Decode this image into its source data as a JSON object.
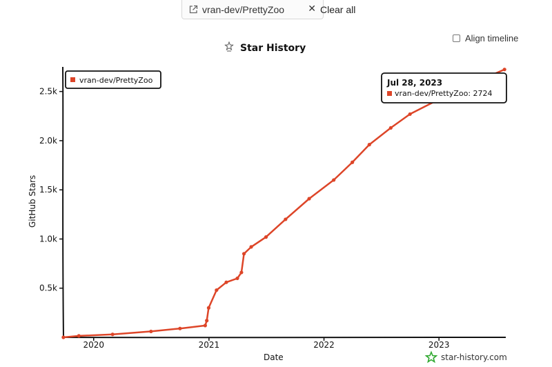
{
  "header": {
    "repo_chip_label": "vran-dev/PrettyZoo",
    "close_symbol": "✕",
    "clear_all_label": "Clear all",
    "align_timeline_label": "Align timeline"
  },
  "chart_data": {
    "type": "line",
    "title": "Star History",
    "xlabel": "Date",
    "ylabel": "GitHub Stars",
    "ylim": [
      0,
      2750
    ],
    "y_ticks": [
      {
        "value": 500,
        "label": "0.5k"
      },
      {
        "value": 1000,
        "label": "1.0k"
      },
      {
        "value": 1500,
        "label": "1.5k"
      },
      {
        "value": 2000,
        "label": "2.0k"
      },
      {
        "value": 2500,
        "label": "2.5k"
      }
    ],
    "x_ticks": [
      {
        "value": "2020-01-01",
        "label": "2020"
      },
      {
        "value": "2021-01-01",
        "label": "2021"
      },
      {
        "value": "2022-01-01",
        "label": "2022"
      },
      {
        "value": "2023-01-01",
        "label": "2023"
      }
    ],
    "xlim": [
      "2019-09-25",
      "2023-08-01"
    ],
    "legend_position": "top-left",
    "grid": false,
    "series": [
      {
        "name": "vran-dev/PrettyZoo",
        "color": "#dd4528",
        "points": [
          {
            "x": "2019-09-27",
            "y": 0
          },
          {
            "x": "2019-11-15",
            "y": 15
          },
          {
            "x": "2020-03-01",
            "y": 30
          },
          {
            "x": "2020-07-01",
            "y": 60
          },
          {
            "x": "2020-10-01",
            "y": 90
          },
          {
            "x": "2020-12-20",
            "y": 120
          },
          {
            "x": "2020-12-25",
            "y": 170
          },
          {
            "x": "2020-12-31",
            "y": 300
          },
          {
            "x": "2021-01-25",
            "y": 480
          },
          {
            "x": "2021-02-25",
            "y": 560
          },
          {
            "x": "2021-04-01",
            "y": 600
          },
          {
            "x": "2021-04-14",
            "y": 660
          },
          {
            "x": "2021-04-22",
            "y": 850
          },
          {
            "x": "2021-05-15",
            "y": 920
          },
          {
            "x": "2021-07-01",
            "y": 1020
          },
          {
            "x": "2021-09-01",
            "y": 1200
          },
          {
            "x": "2021-11-15",
            "y": 1410
          },
          {
            "x": "2022-02-01",
            "y": 1600
          },
          {
            "x": "2022-04-01",
            "y": 1780
          },
          {
            "x": "2022-05-25",
            "y": 1960
          },
          {
            "x": "2022-08-01",
            "y": 2130
          },
          {
            "x": "2022-10-01",
            "y": 2270
          },
          {
            "x": "2023-01-01",
            "y": 2420
          },
          {
            "x": "2023-04-01",
            "y": 2560
          },
          {
            "x": "2023-07-28",
            "y": 2724
          }
        ]
      }
    ],
    "tooltip": {
      "date": "Jul 28, 2023",
      "series_name": "vran-dev/PrettyZoo",
      "value": "2724"
    },
    "watermark": "star-history.com"
  }
}
